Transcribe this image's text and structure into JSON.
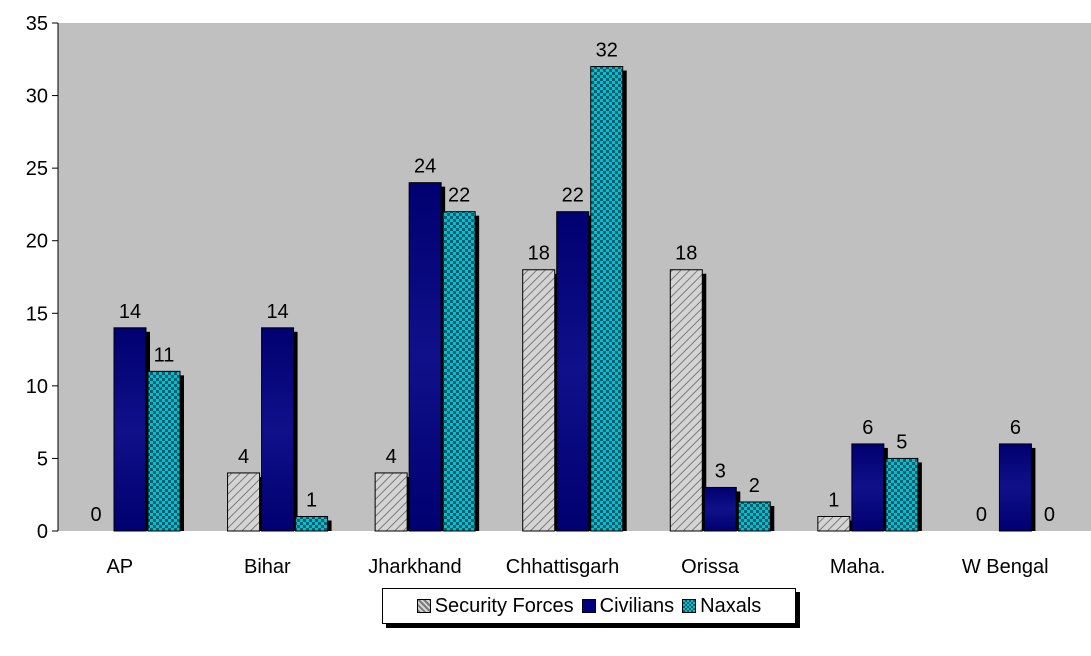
{
  "chart_data": {
    "type": "bar",
    "title": "",
    "xlabel": "",
    "ylabel": "",
    "ylim": [
      0,
      35
    ],
    "yticks": [
      "0",
      "5",
      "10",
      "15",
      "20",
      "25",
      "30",
      "35"
    ],
    "grid": false,
    "legend_position": "bottom",
    "categories": [
      "AP",
      "Bihar",
      "Jharkhand",
      "Chhattisgarh",
      "Orissa",
      "Maha.",
      "W Bengal"
    ],
    "series": [
      {
        "name": "Security Forces",
        "values": [
          0,
          4,
          4,
          18,
          18,
          1,
          0
        ],
        "color": "#c8c8c8",
        "pattern": "diagonal-hatch"
      },
      {
        "name": "Civilians",
        "values": [
          14,
          14,
          24,
          22,
          3,
          6,
          6
        ],
        "color": "#000080",
        "pattern": "solid"
      },
      {
        "name": "Naxals",
        "values": [
          11,
          1,
          22,
          32,
          2,
          5,
          0
        ],
        "color": "#00c8d8",
        "pattern": "checker"
      }
    ]
  }
}
